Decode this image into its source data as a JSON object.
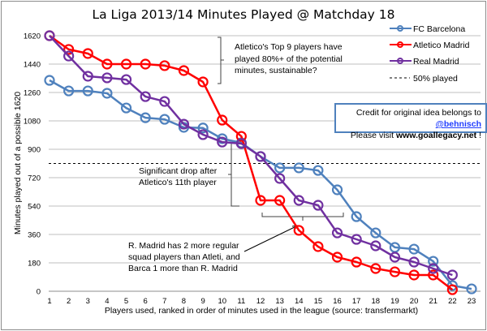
{
  "chart_data": {
    "type": "line",
    "title": "La Liga 2013/14 Minutes Played @ Matchday 18",
    "xlabel": "Players used, ranked in order of minutes used in the league (source: transfermarkt)",
    "ylabel": "Minutes played out of a possible 1620",
    "ylim": [
      0,
      1620
    ],
    "xlim": [
      1,
      23
    ],
    "yticks": [
      0,
      180,
      360,
      540,
      720,
      900,
      1080,
      1260,
      1440,
      1620
    ],
    "xticks": [
      1,
      2,
      3,
      4,
      5,
      6,
      7,
      8,
      9,
      10,
      11,
      12,
      13,
      14,
      15,
      16,
      17,
      18,
      19,
      20,
      21,
      22,
      23
    ],
    "grid": true,
    "legend_position": "top-right",
    "reference_line": {
      "name": "50% played",
      "y": 810,
      "style": "dashed",
      "color": "#000000"
    },
    "series": [
      {
        "name": "FC Barcelona",
        "color": "#4f81bd",
        "x": [
          1,
          2,
          3,
          4,
          5,
          6,
          7,
          8,
          9,
          10,
          11,
          12,
          13,
          14,
          15,
          16,
          17,
          18,
          19,
          20,
          21,
          22,
          23
        ],
        "values": [
          1337,
          1270,
          1270,
          1255,
          1162,
          1100,
          1090,
          1039,
          1035,
          967,
          941,
          854,
          782,
          782,
          766,
          643,
          473,
          370,
          278,
          267,
          190,
          36,
          15
        ]
      },
      {
        "name": "Atletico Madrid",
        "color": "#ff0000",
        "x": [
          1,
          2,
          3,
          4,
          5,
          6,
          7,
          8,
          9,
          10,
          11,
          12,
          13,
          14,
          15,
          16,
          17,
          18,
          19,
          20,
          21,
          22
        ],
        "values": [
          1620,
          1533,
          1507,
          1440,
          1440,
          1440,
          1430,
          1399,
          1327,
          1085,
          982,
          576,
          576,
          386,
          283,
          216,
          185,
          144,
          123,
          103,
          103,
          10
        ]
      },
      {
        "name": "Real Madrid",
        "color": "#7030a0",
        "x": [
          1,
          2,
          3,
          4,
          5,
          6,
          7,
          8,
          9,
          10,
          11,
          12,
          13,
          14,
          15,
          16,
          17,
          18,
          19,
          20,
          21,
          22
        ],
        "values": [
          1620,
          1491,
          1363,
          1353,
          1342,
          1234,
          1203,
          1059,
          993,
          946,
          936,
          854,
          715,
          576,
          545,
          370,
          329,
          288,
          216,
          185,
          144,
          103
        ]
      }
    ],
    "annotations": [
      {
        "lines": [
          "Atletico's Top 9 players have",
          "played 80%+ of the potential",
          "minutes, sustainable?"
        ]
      },
      {
        "lines": [
          "Significant drop after",
          "Atletico's 11th player"
        ]
      },
      {
        "lines": [
          "R. Madrid has 2 more regular",
          "squad players than Atleti, and",
          "Barca 1 more than R. Madrid"
        ]
      }
    ]
  },
  "credit": {
    "prefix": "Credit for original idea belongs to ",
    "handle": "@behnisch",
    "visit_prefix": "Please visit ",
    "site": "www.goallegacy.net",
    "suffix": " !"
  }
}
